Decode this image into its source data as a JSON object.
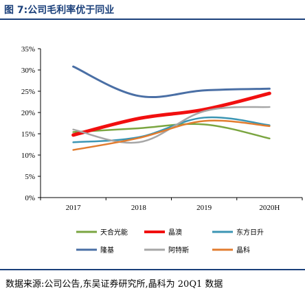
{
  "header": {
    "title": "图 7:公司毛利率优于同业"
  },
  "footer": {
    "source": "数据来源:公司公告,东吴证券研究所,晶科为 20Q1 数据"
  },
  "chart_data": {
    "type": "line",
    "categories": [
      "2017",
      "2018",
      "2019",
      "2020H"
    ],
    "yticks": [
      "0%",
      "5%",
      "10%",
      "15%",
      "20%",
      "25%",
      "30%",
      "35%"
    ],
    "ylim": [
      0,
      35
    ],
    "grid": false,
    "legend_position": "bottom",
    "series": [
      {
        "name": "天合光能",
        "color": "#7aa540",
        "width": 2.5,
        "values": [
          15.4,
          16.3,
          17.2,
          13.9
        ]
      },
      {
        "name": "晶澳",
        "color": "#f10f0f",
        "width": 5,
        "values": [
          14.7,
          18.6,
          20.7,
          24.5
        ]
      },
      {
        "name": "东方日升",
        "color": "#3b95b3",
        "width": 2.5,
        "values": [
          13.0,
          14.2,
          18.8,
          17.0
        ]
      },
      {
        "name": "隆基",
        "color": "#4a6fa5",
        "width": 3,
        "values": [
          30.8,
          23.9,
          25.2,
          25.6
        ]
      },
      {
        "name": "阿特斯",
        "color": "#a6a6a6",
        "width": 2.5,
        "values": [
          16.0,
          13.0,
          20.3,
          21.3
        ]
      },
      {
        "name": "晶科",
        "color": "#e27c2f",
        "width": 2.5,
        "values": [
          11.2,
          14.0,
          18.0,
          16.8
        ]
      }
    ]
  }
}
